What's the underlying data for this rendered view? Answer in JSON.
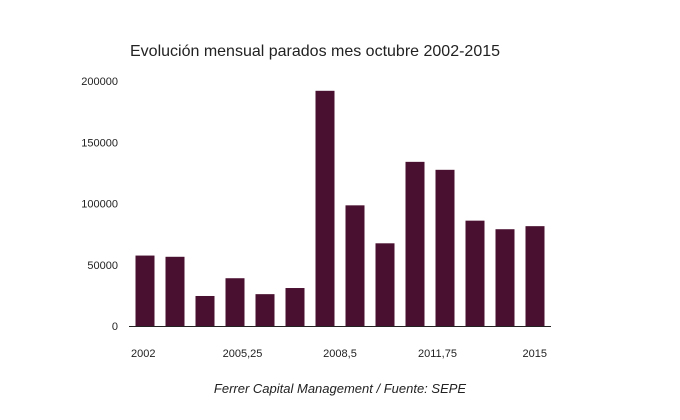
{
  "chart_data": {
    "type": "bar",
    "title": "Evolución mensual parados mes octubre 2002-2015",
    "xlabel": "",
    "ylabel": "",
    "x": [
      2002,
      2003,
      2004,
      2005,
      2006,
      2007,
      2008,
      2009,
      2010,
      2011,
      2012,
      2013,
      2014,
      2015
    ],
    "values": [
      57500,
      56500,
      24500,
      39000,
      26000,
      31000,
      192000,
      98500,
      67500,
      134000,
      127500,
      86000,
      79000,
      81500
    ],
    "xlim": [
      2002,
      2015
    ],
    "ylim": [
      0,
      200000
    ],
    "x_ticks": [
      2002,
      2005.25,
      2008.5,
      2011.75,
      2015
    ],
    "x_tick_labels": [
      "2002",
      "2005,25",
      "2008,5",
      "2011,75",
      "2015"
    ],
    "y_ticks": [
      0,
      50000,
      100000,
      150000,
      200000
    ],
    "y_tick_labels": [
      "0",
      "50000",
      "100000",
      "150000",
      "200000"
    ],
    "grid": false,
    "legend": "none",
    "bar_color": "#4a1030",
    "axis_color": "#222222",
    "caption": "Ferrer Capital Management / Fuente: SEPE"
  }
}
